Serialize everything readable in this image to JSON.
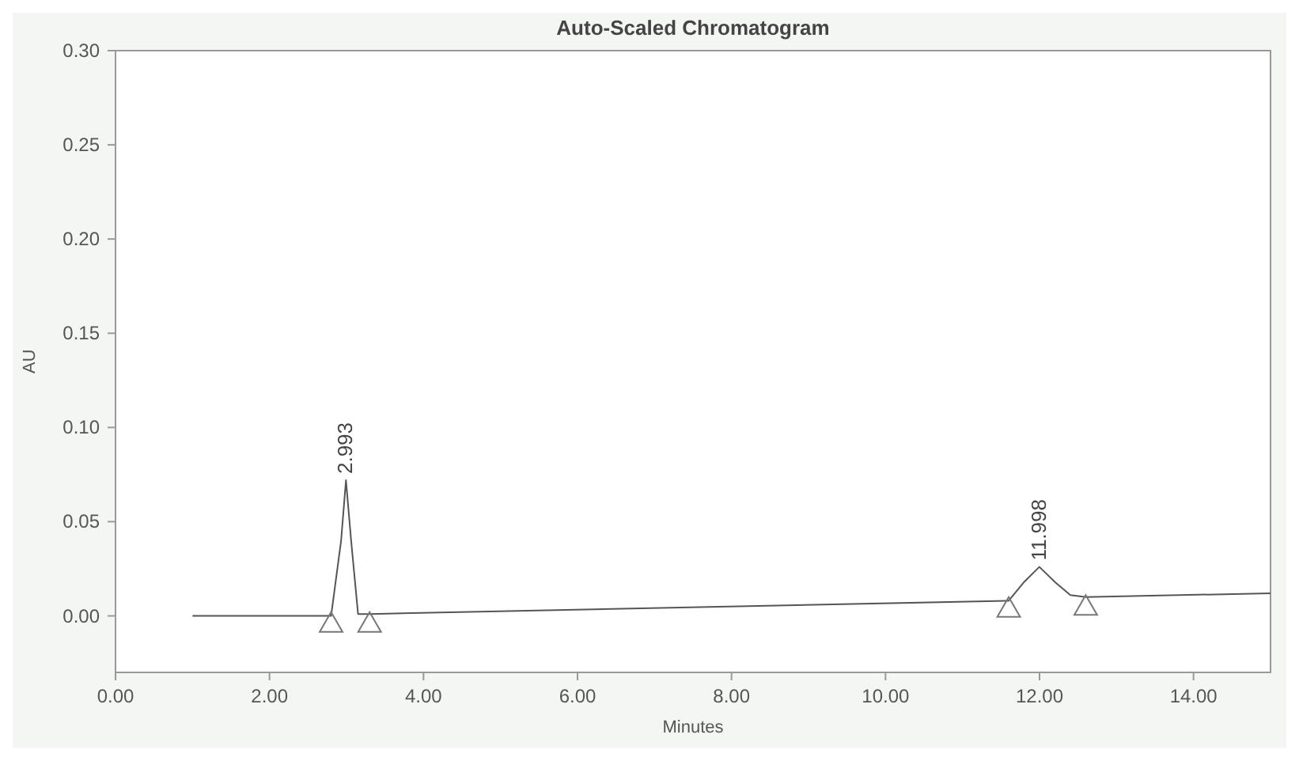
{
  "chart_data": {
    "type": "line",
    "title": "Auto-Scaled Chromatogram",
    "xlabel": "Minutes",
    "ylabel": "AU",
    "xlim": [
      0,
      15
    ],
    "ylim": [
      -0.03,
      0.3
    ],
    "xticks": [
      {
        "value": 0,
        "label": "0.00"
      },
      {
        "value": 2,
        "label": "2.00"
      },
      {
        "value": 4,
        "label": "4.00"
      },
      {
        "value": 6,
        "label": "6.00"
      },
      {
        "value": 8,
        "label": "8.00"
      },
      {
        "value": 10,
        "label": "10.00"
      },
      {
        "value": 12,
        "label": "12.00"
      },
      {
        "value": 14,
        "label": "14.00"
      }
    ],
    "yticks": [
      {
        "value": 0,
        "label": "0.00"
      },
      {
        "value": 0.05,
        "label": "0.05"
      },
      {
        "value": 0.1,
        "label": "0.10"
      },
      {
        "value": 0.15,
        "label": "0.15"
      },
      {
        "value": 0.2,
        "label": "0.20"
      },
      {
        "value": 0.25,
        "label": "0.25"
      },
      {
        "value": 0.3,
        "label": "0.30"
      }
    ],
    "grid": false,
    "series": [
      {
        "color": "#555555",
        "x": [
          1.0,
          2.8,
          2.93,
          2.993,
          3.06,
          3.15,
          3.3,
          11.6,
          11.8,
          11.998,
          12.2,
          12.4,
          12.6,
          15
        ],
        "values": [
          0.0,
          0.0,
          0.04,
          0.072,
          0.04,
          0.001,
          0.001,
          0.008,
          0.018,
          0.026,
          0.018,
          0.011,
          0.01,
          0.012
        ]
      },
      {
        "type": "scatter",
        "color": "#777777",
        "marker": "triangle",
        "x": [
          2.8,
          3.3,
          11.6,
          12.6
        ],
        "values": [
          -0.005,
          -0.005,
          0.003,
          0.004
        ]
      }
    ],
    "annotations": [
      {
        "text": "2.993",
        "x": 2.993,
        "y": 0.072
      },
      {
        "text": "11.998",
        "x": 11.998,
        "y": 0.026
      }
    ]
  }
}
